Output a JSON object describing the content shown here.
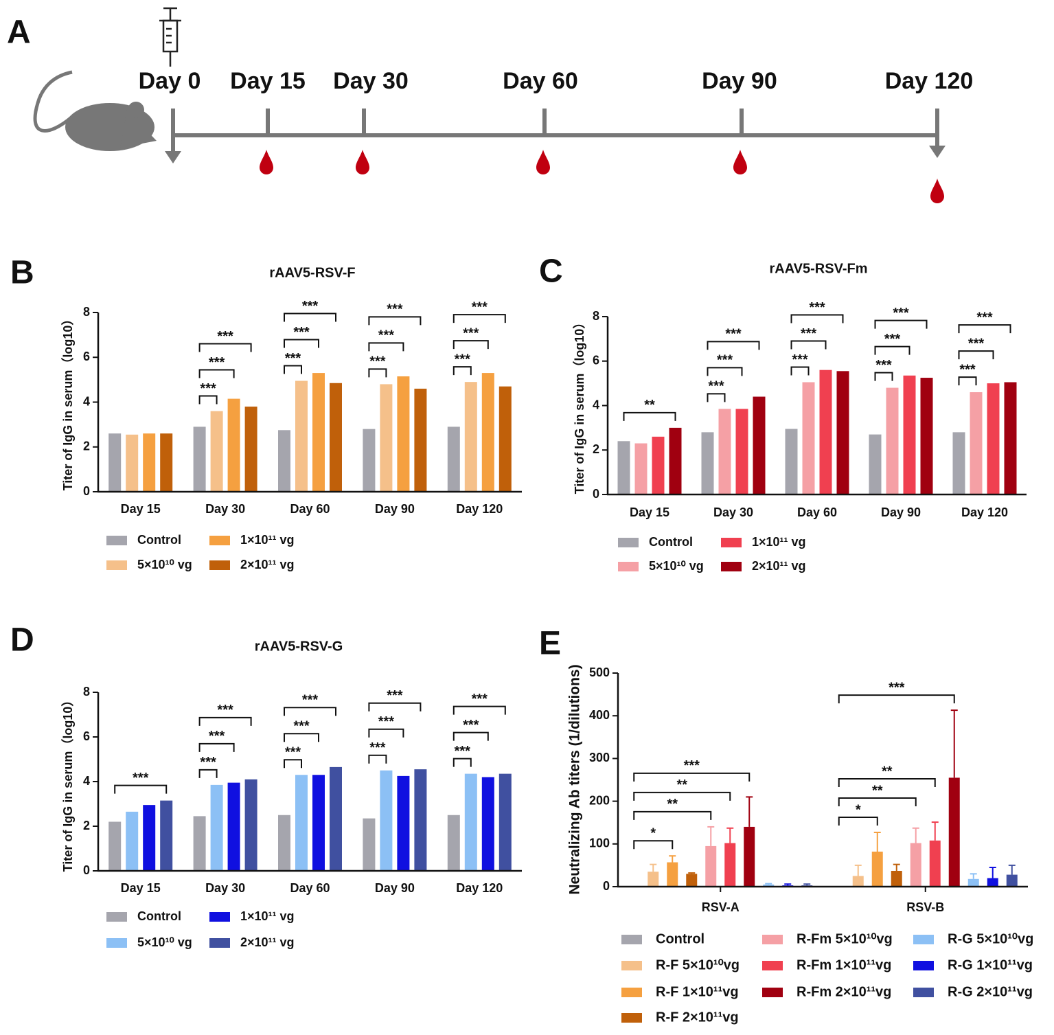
{
  "timeline": {
    "panel": "A",
    "days": [
      "Day 0",
      "Day 15",
      "Day 30",
      "Day 60",
      "Day 90",
      "Day 120"
    ]
  },
  "chart_data": [
    {
      "type": "bar",
      "panel": "B",
      "title": "rAAV5-RSV-F",
      "y_label": "Titer of IgG in serum（log10）",
      "categories": [
        "Day 15",
        "Day 30",
        "Day 60",
        "Day 90",
        "Day 120"
      ],
      "ylim": [
        0,
        8
      ],
      "yticks": [
        0,
        2,
        4,
        6,
        8
      ],
      "series": [
        {
          "name": "Control",
          "color": "#a5a5ad",
          "values": [
            2.6,
            2.9,
            2.75,
            2.8,
            2.9
          ]
        },
        {
          "name": "5×10¹⁰ vg",
          "color": "#f5c08a",
          "values": [
            2.55,
            3.6,
            4.95,
            4.8,
            4.9
          ]
        },
        {
          "name": "1×10¹¹ vg",
          "color": "#f5a040",
          "values": [
            2.6,
            4.15,
            5.3,
            5.15,
            5.3
          ]
        },
        {
          "name": "2×10¹¹ vg",
          "color": "#c0600a",
          "values": [
            2.6,
            3.8,
            4.85,
            4.6,
            4.7
          ]
        }
      ],
      "annotations": [
        {
          "category": 1,
          "from": 0,
          "to": 1,
          "text": "***"
        },
        {
          "category": 1,
          "from": 0,
          "to": 2,
          "text": "***"
        },
        {
          "category": 1,
          "from": 0,
          "to": 3,
          "text": "***"
        },
        {
          "category": 2,
          "from": 0,
          "to": 1,
          "text": "***"
        },
        {
          "category": 2,
          "from": 0,
          "to": 2,
          "text": "***"
        },
        {
          "category": 2,
          "from": 0,
          "to": 3,
          "text": "***"
        },
        {
          "category": 3,
          "from": 0,
          "to": 1,
          "text": "***"
        },
        {
          "category": 3,
          "from": 0,
          "to": 2,
          "text": "***"
        },
        {
          "category": 3,
          "from": 0,
          "to": 3,
          "text": "***"
        },
        {
          "category": 4,
          "from": 0,
          "to": 1,
          "text": "***"
        },
        {
          "category": 4,
          "from": 0,
          "to": 2,
          "text": "***"
        },
        {
          "category": 4,
          "from": 0,
          "to": 3,
          "text": "***"
        }
      ]
    },
    {
      "type": "bar",
      "panel": "C",
      "title": "rAAV5-RSV-Fm",
      "y_label": "Titer of IgG in serum（log10）",
      "categories": [
        "Day 15",
        "Day 30",
        "Day 60",
        "Day 90",
        "Day 120"
      ],
      "ylim": [
        0,
        8
      ],
      "yticks": [
        0,
        2,
        4,
        6,
        8
      ],
      "series": [
        {
          "name": "Control",
          "color": "#a5a5ad",
          "values": [
            2.4,
            2.8,
            2.95,
            2.7,
            2.8
          ]
        },
        {
          "name": "5×10¹⁰ vg",
          "color": "#f5a0a5",
          "values": [
            2.3,
            3.85,
            5.05,
            4.8,
            4.6
          ]
        },
        {
          "name": "1×10¹¹ vg",
          "color": "#f04050",
          "values": [
            2.6,
            3.85,
            5.6,
            5.35,
            5.0
          ]
        },
        {
          "name": "2×10¹¹ vg",
          "color": "#a00010",
          "values": [
            3.0,
            4.4,
            5.55,
            5.25,
            5.05
          ]
        }
      ],
      "annotations": [
        {
          "category": 0,
          "from": 0,
          "to": 3,
          "text": "**"
        },
        {
          "category": 1,
          "from": 0,
          "to": 1,
          "text": "***"
        },
        {
          "category": 1,
          "from": 0,
          "to": 2,
          "text": "***"
        },
        {
          "category": 1,
          "from": 0,
          "to": 3,
          "text": "***"
        },
        {
          "category": 2,
          "from": 0,
          "to": 1,
          "text": "***"
        },
        {
          "category": 2,
          "from": 0,
          "to": 2,
          "text": "***"
        },
        {
          "category": 2,
          "from": 0,
          "to": 3,
          "text": "***"
        },
        {
          "category": 3,
          "from": 0,
          "to": 1,
          "text": "***"
        },
        {
          "category": 3,
          "from": 0,
          "to": 2,
          "text": "***"
        },
        {
          "category": 3,
          "from": 0,
          "to": 3,
          "text": "***"
        },
        {
          "category": 4,
          "from": 0,
          "to": 1,
          "text": "***"
        },
        {
          "category": 4,
          "from": 0,
          "to": 2,
          "text": "***"
        },
        {
          "category": 4,
          "from": 0,
          "to": 3,
          "text": "***"
        }
      ]
    },
    {
      "type": "bar",
      "panel": "D",
      "title": "rAAV5-RSV-G",
      "y_label": "Titer of IgG in serum（log10）",
      "categories": [
        "Day 15",
        "Day 30",
        "Day 60",
        "Day 90",
        "Day 120"
      ],
      "ylim": [
        0,
        8
      ],
      "yticks": [
        0,
        2,
        4,
        6,
        8
      ],
      "series": [
        {
          "name": "Control",
          "color": "#a5a5ad",
          "values": [
            2.2,
            2.45,
            2.5,
            2.35,
            2.5
          ]
        },
        {
          "name": "5×10¹⁰ vg",
          "color": "#8cc0f5",
          "values": [
            2.65,
            3.85,
            4.3,
            4.5,
            4.35
          ]
        },
        {
          "name": "1×10¹¹ vg",
          "color": "#1010e0",
          "values": [
            2.95,
            3.95,
            4.3,
            4.25,
            4.2
          ]
        },
        {
          "name": "2×10¹¹ vg",
          "color": "#4050a0",
          "values": [
            3.15,
            4.1,
            4.65,
            4.55,
            4.35
          ]
        }
      ],
      "annotations": [
        {
          "category": 0,
          "from": 0,
          "to": 3,
          "text": "***"
        },
        {
          "category": 1,
          "from": 0,
          "to": 1,
          "text": "***"
        },
        {
          "category": 1,
          "from": 0,
          "to": 2,
          "text": "***"
        },
        {
          "category": 1,
          "from": 0,
          "to": 3,
          "text": "***"
        },
        {
          "category": 2,
          "from": 0,
          "to": 1,
          "text": "***"
        },
        {
          "category": 2,
          "from": 0,
          "to": 2,
          "text": "***"
        },
        {
          "category": 2,
          "from": 0,
          "to": 3,
          "text": "***"
        },
        {
          "category": 3,
          "from": 0,
          "to": 1,
          "text": "***"
        },
        {
          "category": 3,
          "from": 0,
          "to": 2,
          "text": "***"
        },
        {
          "category": 3,
          "from": 0,
          "to": 3,
          "text": "***"
        },
        {
          "category": 4,
          "from": 0,
          "to": 1,
          "text": "***"
        },
        {
          "category": 4,
          "from": 0,
          "to": 2,
          "text": "***"
        },
        {
          "category": 4,
          "from": 0,
          "to": 3,
          "text": "***"
        }
      ]
    },
    {
      "type": "bar",
      "panel": "E",
      "y_label": "Neutralizing Ab titers (1/dilutions)",
      "categories": [
        "RSV-A",
        "RSV-B"
      ],
      "ylim": [
        0,
        500
      ],
      "yticks": [
        0,
        100,
        200,
        300,
        400,
        500
      ],
      "series": [
        {
          "name": "Control",
          "color": "#a5a5ad",
          "values": [
            0,
            0
          ],
          "errors": [
            0,
            0
          ]
        },
        {
          "name": "R-F 5×10¹⁰vg",
          "color": "#f5c08a",
          "values": [
            35,
            25
          ],
          "errors": [
            17,
            25
          ]
        },
        {
          "name": "R-F 1×10¹¹vg",
          "color": "#f5a040",
          "values": [
            57,
            82
          ],
          "errors": [
            15,
            45
          ]
        },
        {
          "name": "R-F 2×10¹¹vg",
          "color": "#c0600a",
          "values": [
            30,
            37
          ],
          "errors": [
            2,
            15
          ]
        },
        {
          "name": "R-Fm 5×10¹⁰vg",
          "color": "#f5a0a5",
          "values": [
            95,
            102
          ],
          "errors": [
            45,
            35
          ]
        },
        {
          "name": "R-Fm 1×10¹¹vg",
          "color": "#f04050",
          "values": [
            102,
            108
          ],
          "errors": [
            35,
            43
          ]
        },
        {
          "name": "R-Fm 2×10¹¹vg",
          "color": "#a00010",
          "values": [
            140,
            255
          ],
          "errors": [
            70,
            158
          ]
        },
        {
          "name": "R-G 5×10¹⁰vg",
          "color": "#8cc0f5",
          "values": [
            5,
            18
          ],
          "errors": [
            2,
            12
          ]
        },
        {
          "name": "R-G 1×10¹¹vg",
          "color": "#1010e0",
          "values": [
            3,
            20
          ],
          "errors": [
            3,
            25
          ]
        },
        {
          "name": "R-G 2×10¹¹vg",
          "color": "#4050a0",
          "values": [
            3,
            28
          ],
          "errors": [
            3,
            22
          ]
        }
      ],
      "annotations": [
        {
          "category": 0,
          "from": 0,
          "to": 2,
          "text": "*"
        },
        {
          "category": 0,
          "from": 0,
          "to": 4,
          "text": "**"
        },
        {
          "category": 0,
          "from": 0,
          "to": 5,
          "text": "**"
        },
        {
          "category": 0,
          "from": 0,
          "to": 6,
          "text": "***"
        },
        {
          "category": 1,
          "from": 0,
          "to": 2,
          "text": "*"
        },
        {
          "category": 1,
          "from": 0,
          "to": 4,
          "text": "**"
        },
        {
          "category": 1,
          "from": 0,
          "to": 5,
          "text": "**"
        },
        {
          "category": 1,
          "from": 0,
          "to": 6,
          "text": "***"
        }
      ]
    }
  ]
}
